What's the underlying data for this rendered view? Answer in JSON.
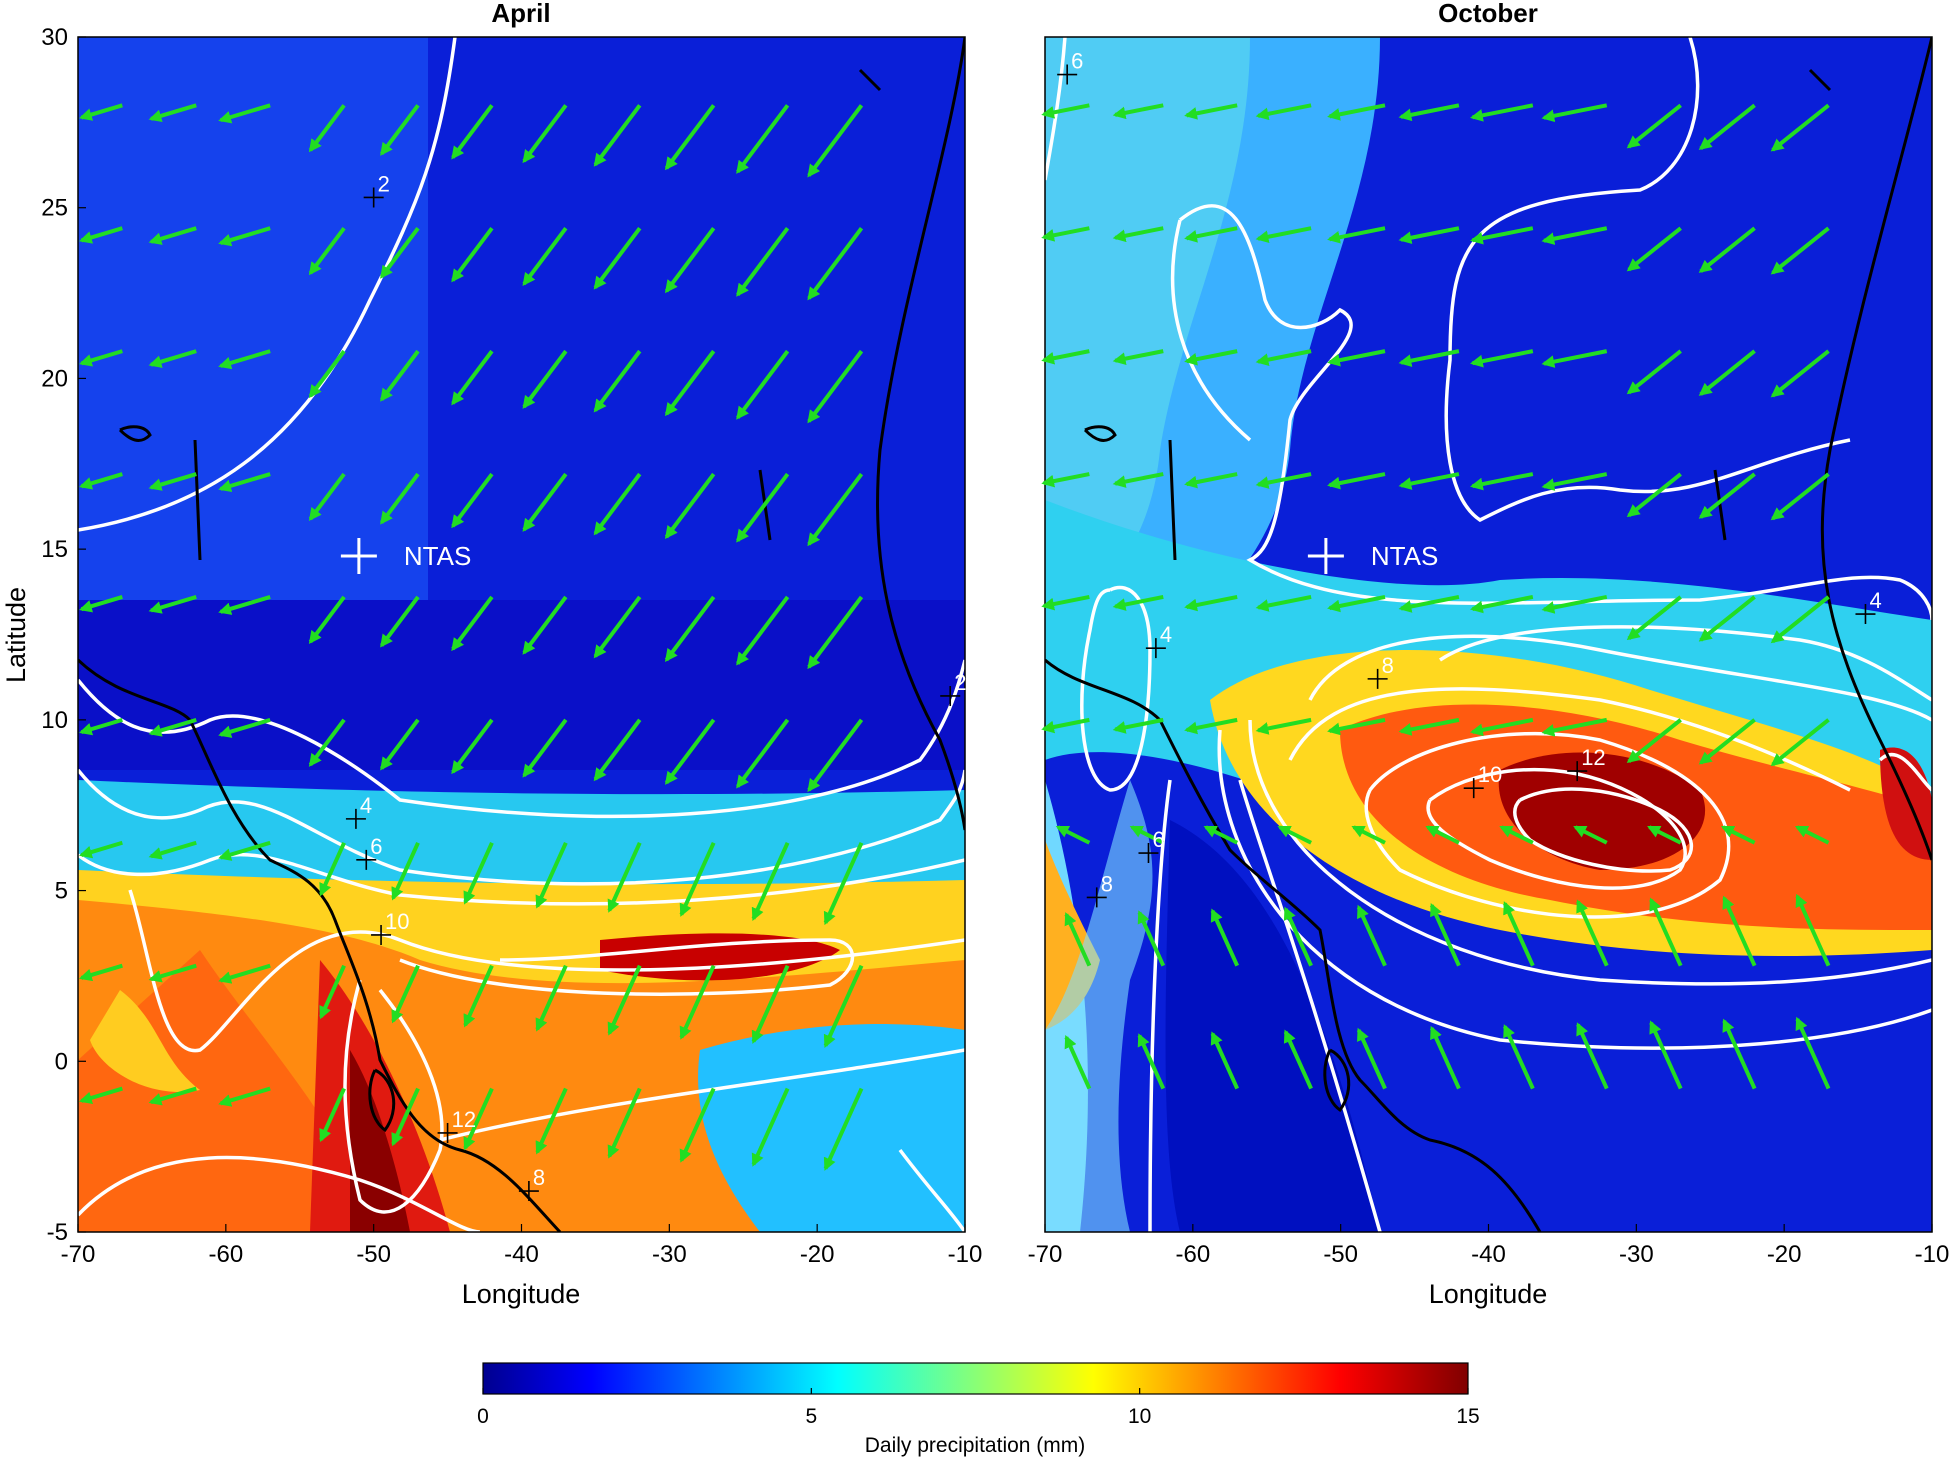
{
  "chart_data": {
    "type": "heatmap",
    "panels": [
      {
        "title": "April",
        "xlabel": "Longitude",
        "ylabel": "Latitude",
        "xlim": [
          -70,
          -10
        ],
        "ylim": [
          -5,
          30
        ],
        "xticks": [
          "-70",
          "-60",
          "-50",
          "-40",
          "-30",
          "-20",
          "-10"
        ],
        "yticks": [
          "-5",
          "0",
          "5",
          "10",
          "15",
          "20",
          "25",
          "30"
        ],
        "marker": {
          "label": "NTAS",
          "lon": -51,
          "lat": 14.8
        },
        "contour_labels": [
          {
            "text": "2",
            "lon": -50,
            "lat": 25.3
          },
          {
            "text": "2",
            "lon": -11,
            "lat": 10.7
          },
          {
            "text": "4",
            "lon": -51.2,
            "lat": 7.1
          },
          {
            "text": "6",
            "lon": -50.5,
            "lat": 5.9
          },
          {
            "text": "10",
            "lon": -49.5,
            "lat": 3.7
          },
          {
            "text": "12",
            "lon": -45,
            "lat": -2.1
          },
          {
            "text": "8",
            "lon": -39.5,
            "lat": -3.8
          }
        ],
        "wind": "northeast trade winds, stronger north of the ITCZ",
        "precip_max_region": "equatorial band 0-5N, peak near the Amazon mouth"
      },
      {
        "title": "October",
        "xlabel": "Longitude",
        "ylabel": "",
        "xlim": [
          -70,
          -10
        ],
        "ylim": [
          -5,
          30
        ],
        "xticks": [
          "-70",
          "-60",
          "-50",
          "-40",
          "-30",
          "-20",
          "-10"
        ],
        "yticks": [],
        "marker": {
          "label": "NTAS",
          "lon": -51,
          "lat": 14.8
        },
        "contour_labels": [
          {
            "text": "6",
            "lon": -68.5,
            "lat": 28.9
          },
          {
            "text": "4",
            "lon": -62.5,
            "lat": 12.1
          },
          {
            "text": "4",
            "lon": -14.5,
            "lat": 13.1
          },
          {
            "text": "8",
            "lon": -47.5,
            "lat": 11.2
          },
          {
            "text": "10",
            "lon": -41,
            "lat": 8
          },
          {
            "text": "12",
            "lon": -34,
            "lat": 8.5
          },
          {
            "text": "6",
            "lon": -63,
            "lat": 6.1
          },
          {
            "text": "8",
            "lon": -66.5,
            "lat": 4.8
          }
        ],
        "wind": "northeast trades north of 8N, southeast trades south of 8N",
        "precip_max_region": "centered near 33W, 7N"
      }
    ],
    "colorbar": {
      "label": "Daily precipitation (mm)",
      "range": [
        0,
        15
      ],
      "ticks": [
        "0",
        "5",
        "10",
        "15"
      ],
      "colormap": "jet"
    }
  },
  "colors": {
    "wind_arrows": "#22dd22",
    "contours": "#ffffff",
    "coastline": "#000000"
  }
}
